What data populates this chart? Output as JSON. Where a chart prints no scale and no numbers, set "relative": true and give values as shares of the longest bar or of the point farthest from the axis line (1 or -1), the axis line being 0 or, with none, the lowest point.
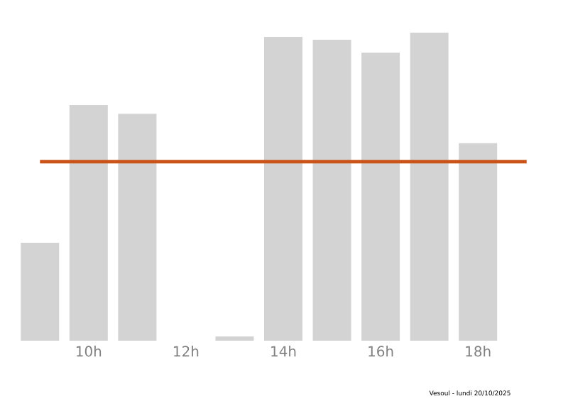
{
  "chart_data": {
    "type": "bar",
    "relative": true,
    "categories": [
      null,
      "10h",
      null,
      "12h",
      null,
      "14h",
      null,
      "16h",
      null,
      "18h",
      null
    ],
    "values": [
      0.318,
      0.765,
      0.737,
      0,
      0.014,
      0.986,
      0.977,
      0.935,
      1,
      0.641,
      0
    ],
    "color": "#d3d3d3",
    "ref_lines": [
      {
        "axis": "y",
        "value": 0.581,
        "color": "#c8541a"
      }
    ],
    "annotations": [
      "Vesoul - lundi 20/10/2025"
    ]
  }
}
